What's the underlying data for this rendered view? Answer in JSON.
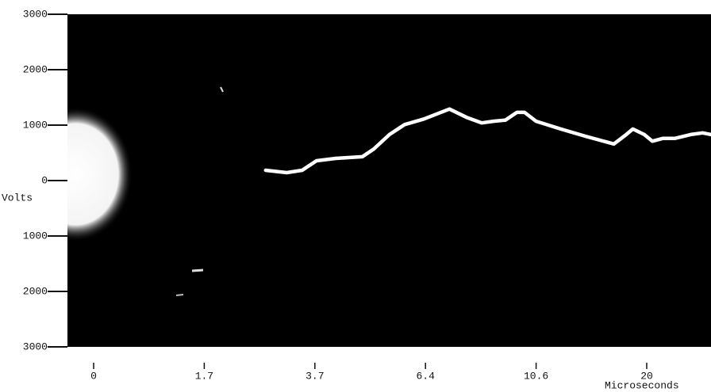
{
  "chart_data": {
    "type": "line",
    "y_label": "Volts",
    "x_label": "Microseconds",
    "xlim": [
      -0.4,
      25.6
    ],
    "xticks": [
      0,
      1.7,
      3.7,
      6.4,
      10.6,
      20
    ],
    "ylim": [
      -3000,
      3000
    ],
    "yticks": [
      {
        "value": 3000,
        "label": "3000"
      },
      {
        "value": 2000,
        "label": "2000"
      },
      {
        "value": 1000,
        "label": "1000"
      },
      {
        "value": 0,
        "label": "0"
      },
      {
        "value": -1000,
        "label": "1000"
      },
      {
        "value": -2000,
        "label": "2000"
      },
      {
        "value": -3000,
        "label": "3000"
      }
    ],
    "background": "#000000",
    "series": [
      {
        "color": "#ffffff",
        "x": [
          2.81,
          3.19,
          3.47,
          3.74,
          4.21,
          4.86,
          5.14,
          5.52,
          5.89,
          6.36,
          7.31,
          7.96,
          8.54,
          8.98,
          9.43,
          9.87,
          10.16,
          10.6,
          12.69,
          14.78,
          17.21,
          18.26,
          18.82,
          19.79,
          20.49,
          21.39,
          22.44,
          23.83,
          24.87,
          25.6
        ],
        "values": [
          186,
          143,
          186,
          357,
          400,
          430,
          570,
          830,
          1010,
          1110,
          1290,
          1140,
          1040,
          1070,
          1090,
          1230,
          1230,
          1070,
          930,
          800,
          660,
          830,
          930,
          830,
          710,
          760,
          760,
          830,
          860,
          830
        ]
      }
    ]
  }
}
